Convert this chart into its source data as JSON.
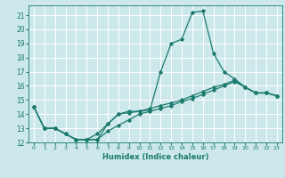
{
  "title": "",
  "xlabel": "Humidex (Indice chaleur)",
  "ylabel": "",
  "bg_color": "#cce8ea",
  "grid_color": "#ffffff",
  "line_color": "#1a7a6e",
  "xlim": [
    -0.5,
    23.5
  ],
  "ylim": [
    12.0,
    21.7
  ],
  "yticks": [
    12,
    13,
    14,
    15,
    16,
    17,
    18,
    19,
    20,
    21
  ],
  "xticks": [
    0,
    1,
    2,
    3,
    4,
    5,
    6,
    7,
    8,
    9,
    10,
    11,
    12,
    13,
    14,
    15,
    16,
    17,
    18,
    19,
    20,
    21,
    22,
    23
  ],
  "line1_x": [
    0,
    1,
    2,
    3,
    4,
    5,
    6,
    7,
    8,
    9,
    10,
    11,
    12,
    13,
    14,
    15,
    16,
    17,
    18,
    19,
    20,
    21,
    22,
    23
  ],
  "line1_y": [
    14.5,
    13.0,
    13.0,
    12.6,
    12.2,
    12.2,
    12.2,
    13.3,
    14.0,
    14.2,
    14.2,
    14.3,
    17.0,
    19.0,
    19.3,
    21.2,
    21.3,
    18.3,
    17.0,
    16.5,
    15.9,
    15.5,
    15.5,
    15.3
  ],
  "line2_x": [
    0,
    1,
    2,
    3,
    4,
    5,
    6,
    7,
    8,
    9,
    10,
    11,
    12,
    13,
    14,
    15,
    16,
    17,
    18,
    19,
    20,
    21,
    22,
    23
  ],
  "line2_y": [
    14.5,
    13.0,
    13.0,
    12.6,
    12.2,
    12.2,
    12.6,
    13.3,
    14.0,
    14.1,
    14.2,
    14.4,
    14.6,
    14.8,
    15.0,
    15.3,
    15.6,
    15.9,
    16.1,
    16.4,
    15.9,
    15.5,
    15.5,
    15.3
  ],
  "line3_x": [
    0,
    1,
    2,
    3,
    4,
    5,
    6,
    7,
    8,
    9,
    10,
    11,
    12,
    13,
    14,
    15,
    16,
    17,
    18,
    19,
    20,
    21,
    22,
    23
  ],
  "line3_y": [
    14.5,
    13.0,
    13.0,
    12.6,
    12.2,
    12.2,
    12.2,
    12.8,
    13.2,
    13.6,
    14.0,
    14.2,
    14.4,
    14.6,
    14.9,
    15.1,
    15.4,
    15.7,
    16.0,
    16.3,
    15.9,
    15.5,
    15.5,
    15.3
  ]
}
